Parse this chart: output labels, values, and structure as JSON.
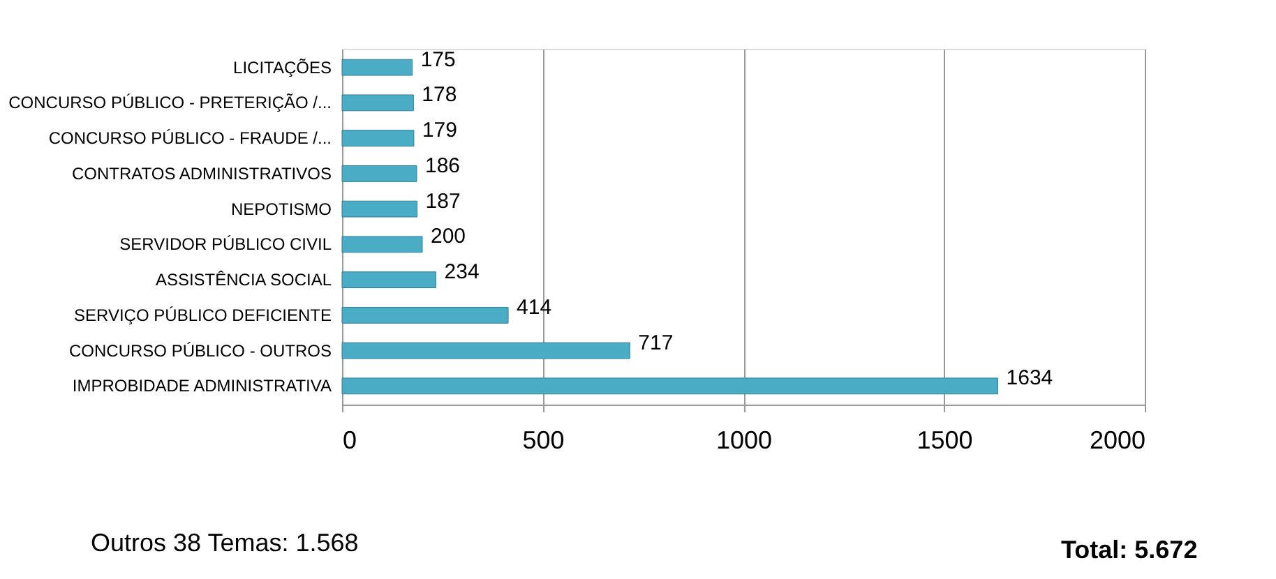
{
  "chart_data": {
    "type": "bar",
    "orientation": "horizontal",
    "categories": [
      "LICITAÇÕES",
      "CONCURSO PÚBLICO - PRETERIÇÃO /...",
      "CONCURSO PÚBLICO - FRAUDE /...",
      "CONTRATOS ADMINISTRATIVOS",
      "NEPOTISMO",
      "SERVIDOR PÚBLICO CIVIL",
      "ASSISTÊNCIA SOCIAL",
      "SERVIÇO PÚBLICO DEFICIENTE",
      "CONCURSO PÚBLICO - OUTROS",
      "IMPROBIDADE ADMINISTRATIVA"
    ],
    "values": [
      175,
      178,
      179,
      186,
      187,
      200,
      234,
      414,
      717,
      1634
    ],
    "color": "#4bacc6",
    "xlim": [
      0,
      2000
    ],
    "xticks": [
      0,
      500,
      1000,
      1500,
      2000
    ],
    "grid": "x",
    "data_labels": true,
    "annotations": [
      "Outros 38 Temas: 1.568",
      "Total: 5.672"
    ]
  }
}
